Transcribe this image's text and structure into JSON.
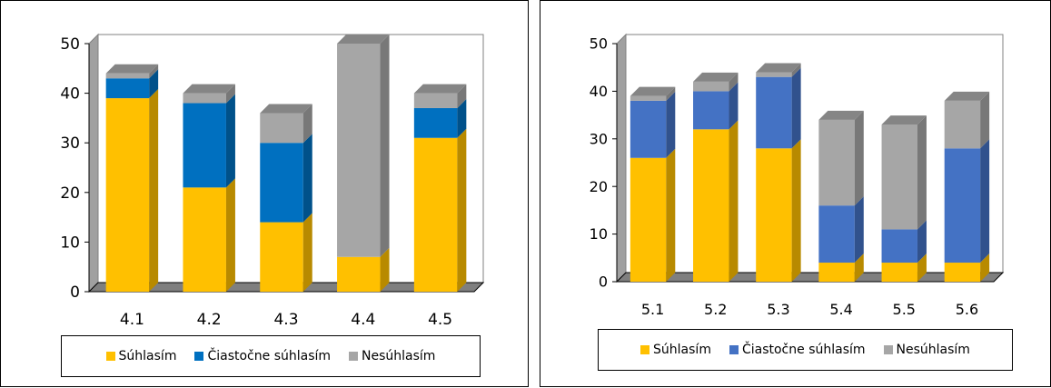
{
  "chart_data": [
    {
      "type": "bar",
      "stacked": true,
      "three_d": true,
      "categories": [
        "4.1",
        "4.2",
        "4.3",
        "4.4",
        "4.5"
      ],
      "series": [
        {
          "name": "Súhlasím",
          "color": "#FFC000",
          "values": [
            39,
            21,
            14,
            7,
            31
          ]
        },
        {
          "name": "Čiastočne súhlasím",
          "color": "#0070C0",
          "values": [
            4,
            17,
            16,
            0,
            6
          ]
        },
        {
          "name": "Nesúhlasím",
          "color": "#A6A6A6",
          "values": [
            1,
            2,
            6,
            43,
            3
          ]
        }
      ],
      "ylim": [
        0,
        50
      ],
      "yticks": [
        0,
        10,
        20,
        30,
        40,
        50
      ],
      "legend": "bottom",
      "grid": false
    },
    {
      "type": "bar",
      "stacked": true,
      "three_d": true,
      "categories": [
        "5.1",
        "5.2",
        "5.3",
        "5.4",
        "5.5",
        "5.6"
      ],
      "series": [
        {
          "name": "Súhlasím",
          "color": "#FFC000",
          "values": [
            26,
            32,
            28,
            4,
            4,
            4
          ]
        },
        {
          "name": "Čiastočne súhlasím",
          "color": "#4472C4",
          "values": [
            12,
            8,
            15,
            12,
            7,
            24
          ]
        },
        {
          "name": "Nesúhlasím",
          "color": "#A6A6A6",
          "values": [
            1,
            2,
            1,
            18,
            22,
            10
          ]
        }
      ],
      "ylim": [
        0,
        50
      ],
      "yticks": [
        0,
        10,
        20,
        30,
        40,
        50
      ],
      "legend": "bottom",
      "grid": false
    }
  ]
}
